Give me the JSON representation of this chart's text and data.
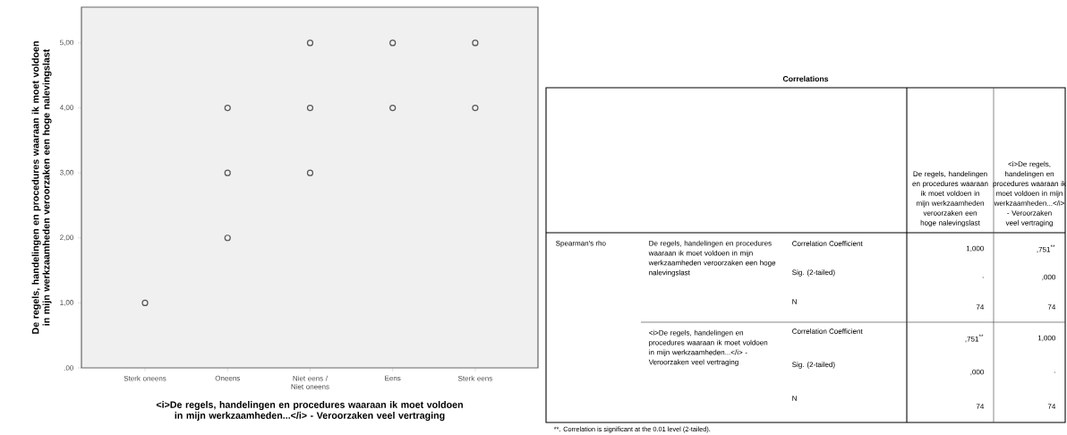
{
  "chart_data": [
    {
      "type": "scatter",
      "xlabel": "<i>De regels, handelingen en procedures waaraan ik moet voldoen in mijn werkzaamheden...</i> - Veroorzaken veel vertraging",
      "ylabel": "De regels, handelingen en procedures waaraan ik moet voldoen in mijn werkzaamheden veroorzaken een hoge nalevingslast",
      "categories": [
        "Sterk oneens",
        "Oneens",
        "Niet eens / Niet oneens",
        "Eens",
        "Sterk eens"
      ],
      "series": [
        {
          "color": "#555555",
          "values": [
            1,
            4,
            5,
            5,
            5
          ]
        },
        {
          "color": "#555555",
          "values": [
            null,
            3,
            4,
            4,
            4
          ]
        },
        {
          "color": "#555555",
          "values": [
            null,
            2,
            3,
            null,
            null
          ]
        }
      ],
      "ylim": [
        0,
        5.55
      ],
      "yticks": [
        {
          "value": 0,
          "label": ".00"
        },
        {
          "value": 1,
          "label": "1,00"
        },
        {
          "value": 2,
          "label": "2,00"
        },
        {
          "value": 3,
          "label": "3,00"
        },
        {
          "value": 4,
          "label": "4,00"
        },
        {
          "value": 5,
          "label": "5,00"
        }
      ],
      "marker": "circle",
      "grid": false
    },
    {
      "type": "other",
      "title": "Correlations",
      "annotations": [
        "De regels, handelingen en procedures waaraan ik moet voldoen in mijn werkzaamheden veroorzaken een hoge nalevingslast",
        "<i>De regels, handelingen en procedures waaraan ik moet voldoen in mijn werkzaamheden...</i> - Veroorzaken veel vertraging",
        "Spearman's rho",
        "De regels, handelingen en procedures waaraan ik moet voldoen in mijn werkzaamheden veroorzaken een hoge nalevingslast",
        "<i>De regels, handelingen en procedures waaraan ik moet voldoen in mijn werkzaamheden...</i> - Veroorzaken veel vertraging",
        "Correlation Coefficient",
        "Sig. (2-tailed)",
        "N",
        "Correlation Coefficient",
        "Sig. (2-tailed)",
        "N",
        "1,000",
        ",751$^{**}$",
        ".",
        ",000",
        "74",
        "74",
        ",751$^{**}$",
        "1,000",
        ",000",
        ".",
        "74",
        "74",
        "**. Correlation is significant at the 0.01 level (2-tailed)."
      ]
    }
  ]
}
